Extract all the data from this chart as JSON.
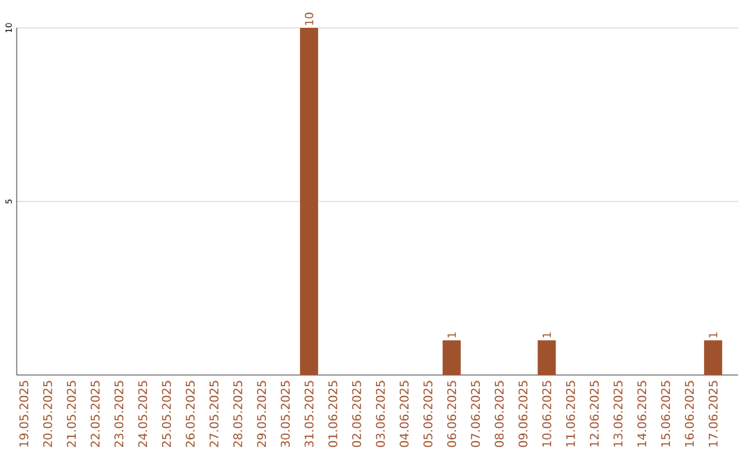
{
  "chart_data": {
    "type": "bar",
    "categories": [
      "19.05.2025",
      "20.05.2025",
      "21.05.2025",
      "22.05.2025",
      "23.05.2025",
      "24.05.2025",
      "25.05.2025",
      "26.05.2025",
      "27.05.2025",
      "28.05.2025",
      "29.05.2025",
      "30.05.2025",
      "31.05.2025",
      "01.06.2025",
      "02.06.2025",
      "03.06.2025",
      "04.06.2025",
      "05.06.2025",
      "06.06.2025",
      "07.06.2025",
      "08.06.2025",
      "09.06.2025",
      "10.06.2025",
      "11.06.2025",
      "12.06.2025",
      "13.06.2025",
      "14.06.2025",
      "15.06.2025",
      "16.06.2025",
      "17.06.2025"
    ],
    "values": [
      0,
      0,
      0,
      0,
      0,
      0,
      0,
      0,
      0,
      0,
      0,
      0,
      10,
      0,
      0,
      0,
      0,
      0,
      1,
      0,
      0,
      0,
      1,
      0,
      0,
      0,
      0,
      0,
      0,
      1
    ],
    "value_labels": [
      null,
      null,
      null,
      null,
      null,
      null,
      null,
      null,
      null,
      null,
      null,
      null,
      "10",
      null,
      null,
      null,
      null,
      null,
      "1",
      null,
      null,
      null,
      "1",
      null,
      null,
      null,
      null,
      null,
      null,
      "1"
    ],
    "color": "#a0522d",
    "ylim": [
      0,
      10
    ],
    "yticks": [
      5,
      10
    ],
    "grid": "y"
  }
}
